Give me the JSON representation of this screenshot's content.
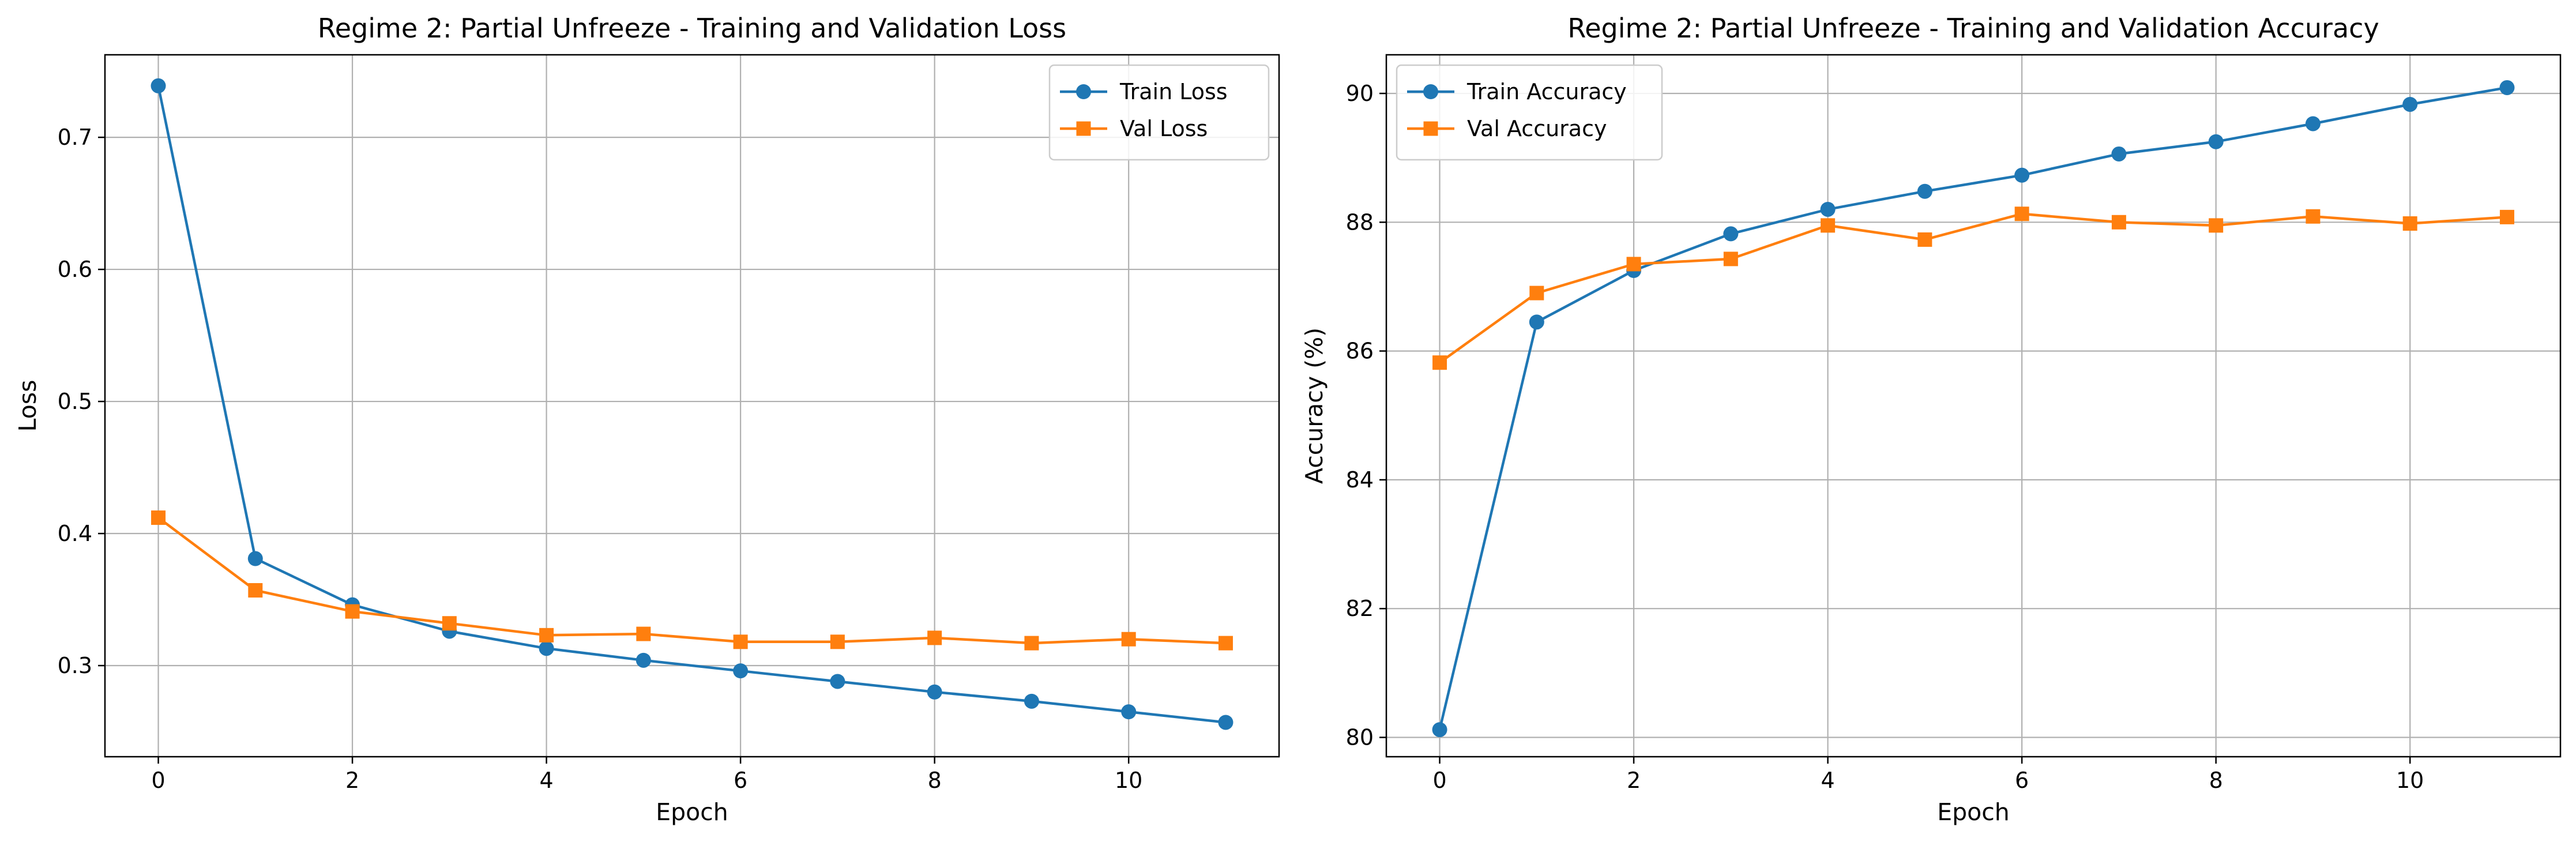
{
  "chart_data": [
    {
      "type": "line",
      "title": "Regime 2: Partial Unfreeze - Training and Validation Loss",
      "xlabel": "Epoch",
      "ylabel": "Loss",
      "xlim": [
        -0.55,
        11.55
      ],
      "ylim": [
        0.231,
        0.7625
      ],
      "xticks": [
        0,
        2,
        4,
        6,
        8,
        10
      ],
      "yticks": [
        0.3,
        0.4,
        0.5,
        0.6,
        0.7
      ],
      "grid": true,
      "legend_position": "top-right",
      "x": [
        0,
        1,
        2,
        3,
        4,
        5,
        6,
        7,
        8,
        9,
        10,
        11
      ],
      "series": [
        {
          "name": "Train Loss",
          "color": "#1f77b4",
          "marker": "circle",
          "values": [
            0.739,
            0.381,
            0.346,
            0.326,
            0.313,
            0.304,
            0.296,
            0.288,
            0.28,
            0.273,
            0.265,
            0.257
          ]
        },
        {
          "name": "Val Loss",
          "color": "#ff7f0e",
          "marker": "square",
          "values": [
            0.412,
            0.357,
            0.341,
            0.332,
            0.323,
            0.324,
            0.318,
            0.318,
            0.321,
            0.317,
            0.32,
            0.317
          ]
        }
      ]
    },
    {
      "type": "line",
      "title": "Regime 2: Partial Unfreeze - Training and Validation Accuracy",
      "xlabel": "Epoch",
      "ylabel": "Accuracy (%)",
      "xlim": [
        -0.55,
        11.55
      ],
      "ylim": [
        79.7,
        90.6
      ],
      "xticks": [
        0,
        2,
        4,
        6,
        8,
        10
      ],
      "yticks": [
        80,
        82,
        84,
        86,
        88,
        90
      ],
      "grid": true,
      "legend_position": "top-left",
      "x": [
        0,
        1,
        2,
        3,
        4,
        5,
        6,
        7,
        8,
        9,
        10,
        11
      ],
      "series": [
        {
          "name": "Train Accuracy",
          "color": "#1f77b4",
          "marker": "circle",
          "values": [
            80.12,
            86.45,
            87.25,
            87.82,
            88.2,
            88.48,
            88.73,
            89.06,
            89.25,
            89.53,
            89.83,
            90.09
          ]
        },
        {
          "name": "Val Accuracy",
          "color": "#ff7f0e",
          "marker": "square",
          "values": [
            85.82,
            86.9,
            87.35,
            87.43,
            87.95,
            87.73,
            88.13,
            88.0,
            87.95,
            88.09,
            87.98,
            88.08
          ]
        }
      ]
    }
  ]
}
